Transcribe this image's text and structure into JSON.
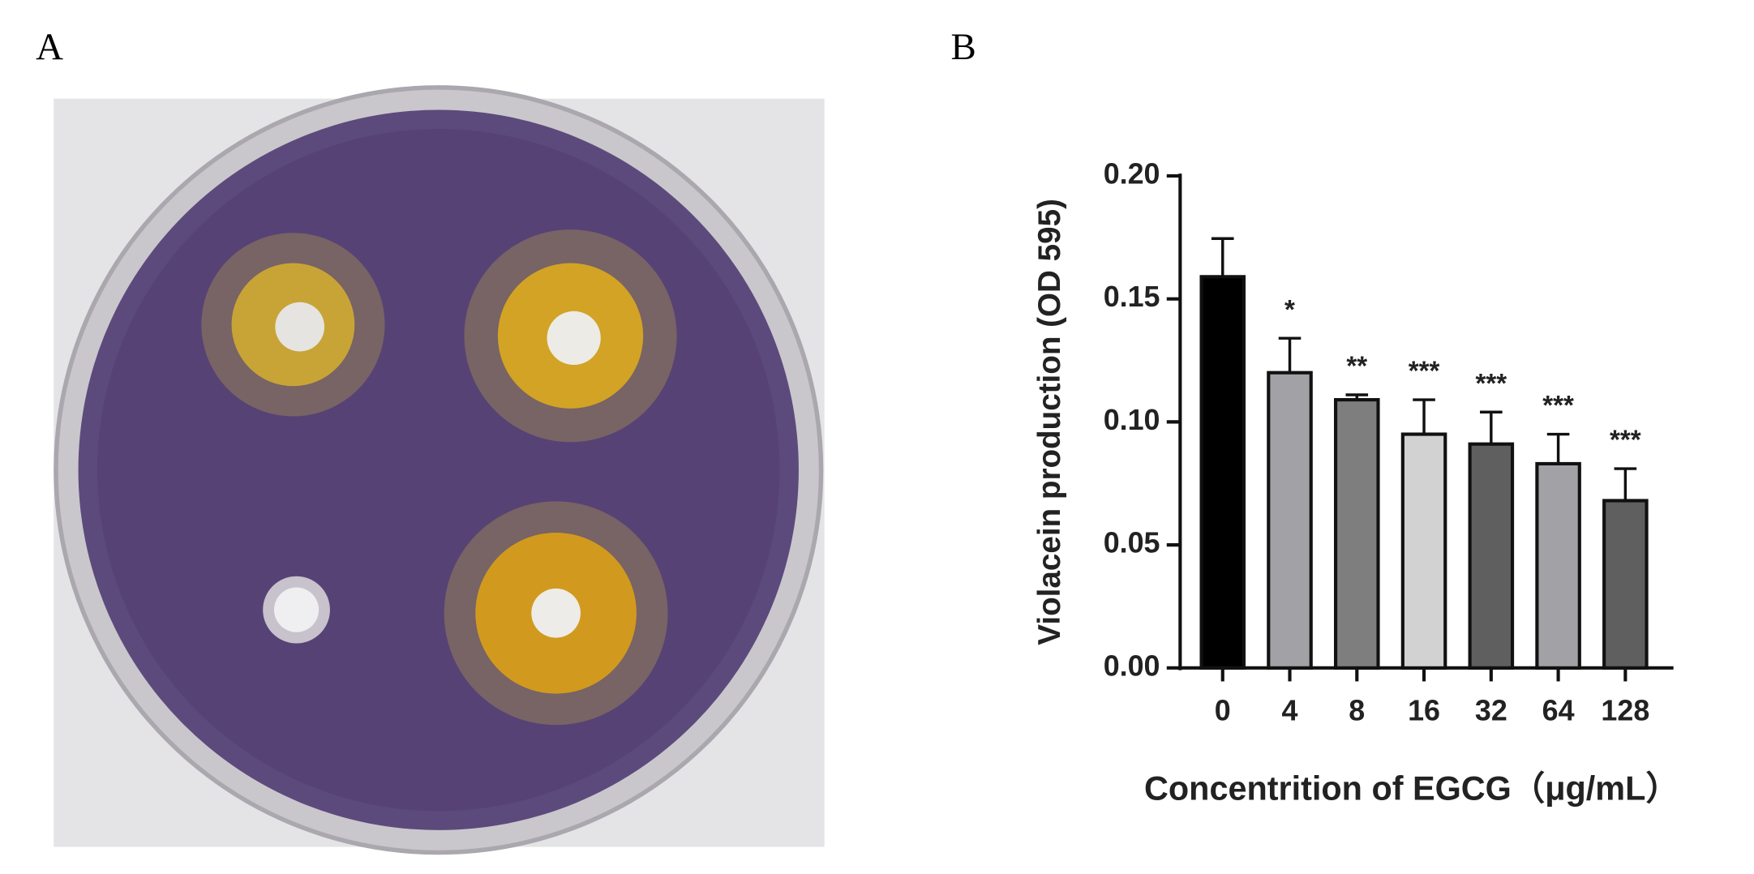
{
  "panels": {
    "a_label": "A",
    "b_label": "B"
  },
  "chart_data": {
    "type": "bar",
    "y_label": "Violacein production (OD 595)",
    "x_label": "Concentrition of EGCG（μg/mL）",
    "categories": [
      "0",
      "4",
      "8",
      "16",
      "32",
      "64",
      "128"
    ],
    "values": [
      0.159,
      0.12,
      0.109,
      0.095,
      0.091,
      0.083,
      0.068
    ],
    "errors": [
      0.0155,
      0.014,
      0.002,
      0.014,
      0.013,
      0.012,
      0.013
    ],
    "colors": [
      "#000000",
      "#a2a2a6",
      "#7e7e7e",
      "#d2d2d2",
      "#5f5f5f",
      "#a2a2a6",
      "#5f5f5f"
    ],
    "annotations": [
      null,
      "*",
      "**",
      "***",
      "***",
      "***",
      "***"
    ],
    "ylim": [
      0,
      0.2
    ],
    "yticks": [
      {
        "value": 0,
        "label": "0.00"
      },
      {
        "value": 0.05,
        "label": "0.05"
      },
      {
        "value": 0.1,
        "label": "0.10"
      },
      {
        "value": 0.15,
        "label": "0.15"
      },
      {
        "value": 0.2,
        "label": "0.20"
      }
    ]
  }
}
